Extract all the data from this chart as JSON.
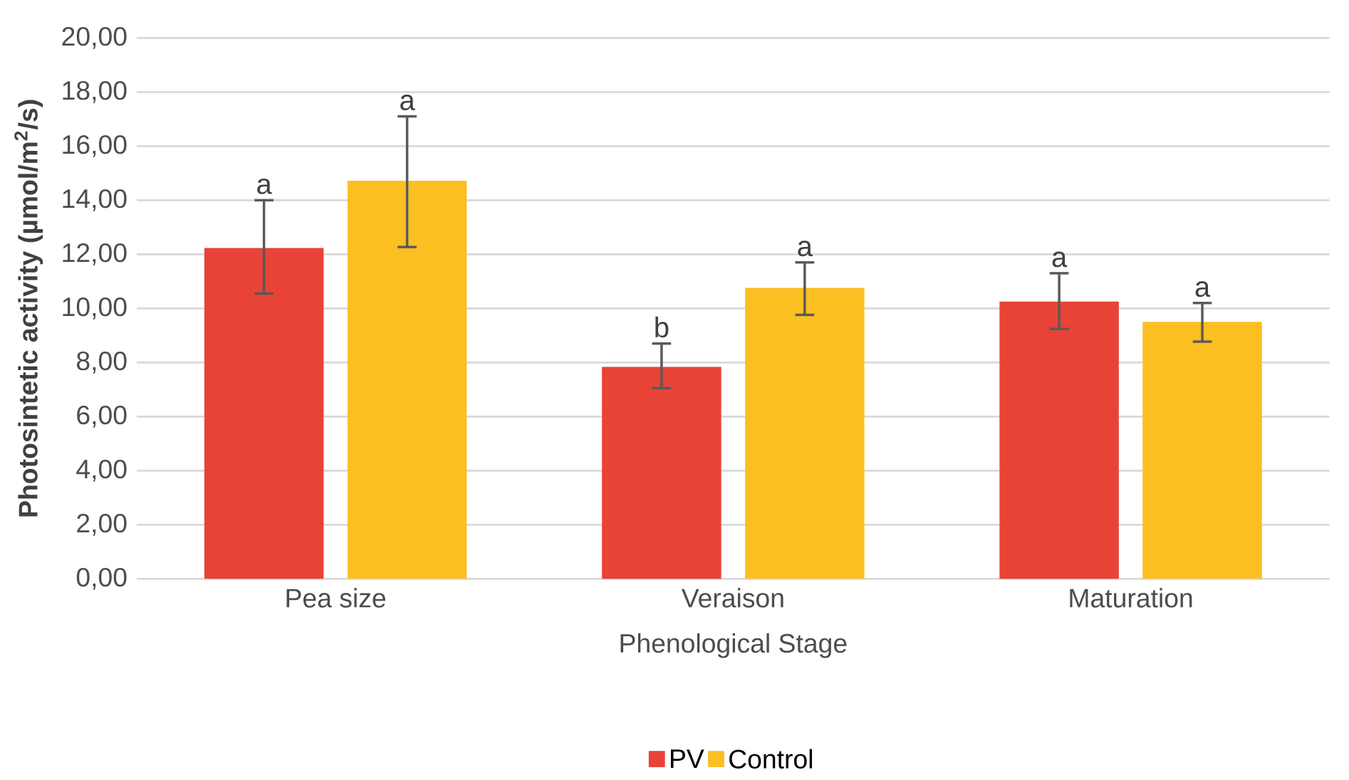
{
  "chart_data": {
    "type": "bar",
    "xlabel": "Phenological Stage",
    "ylabel": "Photosintetic activity (µmol/m$^{2}$/s)",
    "categories": [
      "Pea size",
      "Veraison",
      "Maturation"
    ],
    "series": [
      {
        "name": "PV",
        "color": "#e84336",
        "values": [
          12.23,
          7.84,
          10.25
        ],
        "errors": [
          [
            10.55,
            14.0
          ],
          [
            7.05,
            8.7
          ],
          [
            9.24,
            11.3
          ]
        ],
        "value_labels": [
          "a",
          "b",
          "a"
        ]
      },
      {
        "name": "Control",
        "color": "#fcbf22",
        "values": [
          14.72,
          10.76,
          9.5
        ],
        "errors": [
          [
            12.27,
            17.1
          ],
          [
            9.76,
            11.7
          ],
          [
            8.77,
            10.2
          ]
        ],
        "value_labels": [
          "a",
          "a",
          "a"
        ]
      }
    ],
    "ylim": [
      0,
      20
    ],
    "yticks": [
      {
        "value": 0,
        "label": "0,00"
      },
      {
        "value": 2,
        "label": "2,00"
      },
      {
        "value": 4,
        "label": "4,00"
      },
      {
        "value": 6,
        "label": "6,00"
      },
      {
        "value": 8,
        "label": "8,00"
      },
      {
        "value": 10,
        "label": "10,00"
      },
      {
        "value": 12,
        "label": "12,00"
      },
      {
        "value": 14,
        "label": "14,00"
      },
      {
        "value": 16,
        "label": "16,00"
      },
      {
        "value": 18,
        "label": "18,00"
      },
      {
        "value": 20,
        "label": "20,00"
      }
    ],
    "grid": "y",
    "legend": "bottom"
  }
}
